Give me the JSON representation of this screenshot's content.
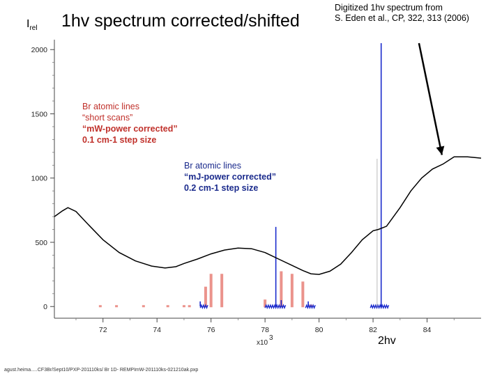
{
  "header": {
    "ylabel_main": "I",
    "ylabel_sub": "rel",
    "title": "1hv spectrum  corrected/shifted",
    "citation_line1": "Digitized 1hv spectrum from",
    "citation_line2": "S. Eden et al., CP, 322, 313 (2006)"
  },
  "annotations": {
    "red_lines": [
      "Br atomic lines",
      "“short scans”",
      "“mW-power corrected”",
      "0.1 cm-1 step size"
    ],
    "blue_lines": [
      "Br atomic lines",
      "“mJ-power corrected”",
      "0.2 cm-1 step size"
    ],
    "x_unit": "2hv",
    "footer": "agust.heima.....CF3Br/Sept10/PXP-201110ks/ Br 1D- REMPImW-201110ks-021210ak.pxp"
  },
  "chart_data": {
    "type": "line",
    "xlim": [
      70.2,
      86.0
    ],
    "ylim": [
      -80,
      2050
    ],
    "xticks": [
      72,
      74,
      76,
      78,
      80,
      82,
      84
    ],
    "yticks": [
      0,
      500,
      1000,
      1500,
      2000
    ],
    "x_exponent_label": "x10",
    "x_exponent_power": "3",
    "series": [
      {
        "color": "#000000",
        "x": [
          70.2,
          70.5,
          70.7,
          71.0,
          71.4,
          72.0,
          72.6,
          73.2,
          73.8,
          74.3,
          74.7,
          75.0,
          75.5,
          76.0,
          76.5,
          77.0,
          77.5,
          78.0,
          78.5,
          79.0,
          79.4,
          79.7,
          80.0,
          80.4,
          80.8,
          81.2,
          81.6,
          82.0,
          82.2,
          82.5,
          83.0,
          83.4,
          83.8,
          84.2,
          84.6,
          85.0,
          85.5,
          86.0
        ],
        "values": [
          700,
          745,
          770,
          740,
          650,
          520,
          420,
          355,
          315,
          300,
          310,
          335,
          370,
          410,
          440,
          455,
          450,
          420,
          370,
          320,
          280,
          255,
          250,
          275,
          330,
          420,
          520,
          590,
          600,
          625,
          770,
          900,
          1000,
          1070,
          1110,
          1165,
          1165,
          1155
        ]
      },
      {
        "name": "Br atomic lines “short scans”",
        "color": "#e88078",
        "x": [
          71.9,
          72.5,
          73.5,
          74.4,
          75.0,
          75.2,
          75.8,
          76.0,
          76.4,
          78.0,
          78.6,
          79.0,
          79.4,
          79.7
        ],
        "values": [
          10,
          10,
          10,
          10,
          10,
          10,
          160,
          260,
          260,
          60,
          280,
          260,
          200,
          20
        ]
      },
      {
        "name": "Br atomic lines “mJ-power corrected”",
        "color": "#1a2acc",
        "x": [
          75.6,
          78.4,
          78.6,
          79.6,
          82.3
        ],
        "values": [
          40,
          620,
          50,
          40,
          2050
        ]
      }
    ],
    "arrow": {
      "from_x": 83.7,
      "from_y": 2050,
      "to_x": 84.55,
      "to_y": 1180
    }
  }
}
